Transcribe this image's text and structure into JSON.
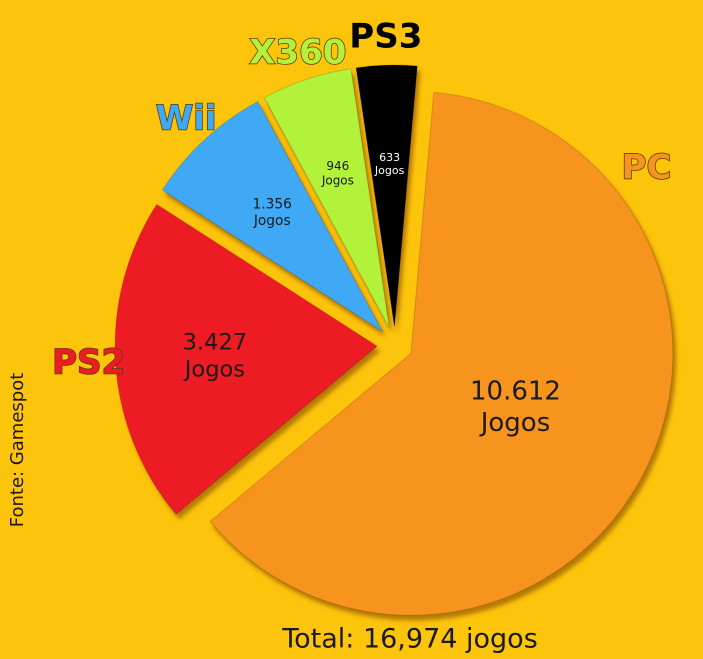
{
  "chart_data": {
    "type": "pie",
    "categories": [
      "PC",
      "PS2",
      "Wii",
      "X360",
      "PS3"
    ],
    "values": [
      10612,
      3427,
      1356,
      946,
      633
    ],
    "value_labels": [
      "10.612",
      "3.427",
      "1.356",
      "946",
      "633"
    ],
    "unit_label": "Jogos",
    "colors": [
      "#f7941d",
      "#ed1c24",
      "#3fa9f5",
      "#b3f23a",
      "#000000"
    ],
    "label_colors": [
      "#f7941d",
      "#ed1c24",
      "#3fa9f5",
      "#b3f23a",
      "#000000"
    ],
    "subtitle": "Total: 16,974 jogos",
    "source": "Fonte: Gamespot"
  }
}
